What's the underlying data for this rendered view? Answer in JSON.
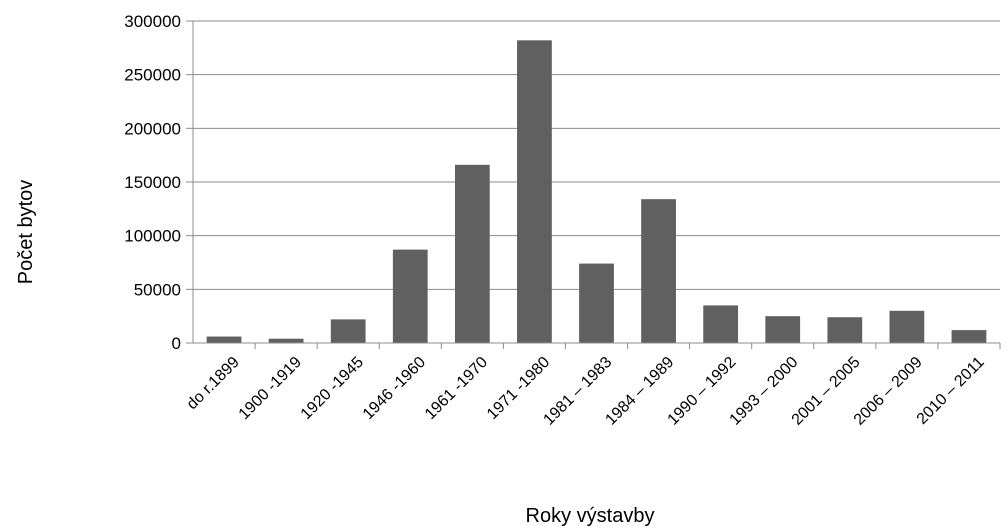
{
  "chart_data": {
    "type": "bar",
    "title": "",
    "xlabel": "Roky výstavby",
    "ylabel": "Počet bytov",
    "categories": [
      "do r.1899",
      "1900 -1919",
      "1920 -1945",
      "1946 -1960",
      "1961 -1970",
      "1971 -1980",
      "1981 – 1983",
      "1984 – 1989",
      "1990 – 1992",
      "1993 – 2000",
      "2001 – 2005",
      "2006 – 2009",
      "2010 – 2011"
    ],
    "values": [
      6000,
      4000,
      22000,
      87000,
      166000,
      282000,
      74000,
      134000,
      35000,
      25000,
      24000,
      30000,
      12000
    ],
    "ylim": [
      0,
      300000
    ],
    "yticks": [
      "0",
      "50000",
      "100000",
      "150000",
      "200000",
      "250000",
      "300000"
    ],
    "grid": true,
    "bar_color": "#606060"
  }
}
